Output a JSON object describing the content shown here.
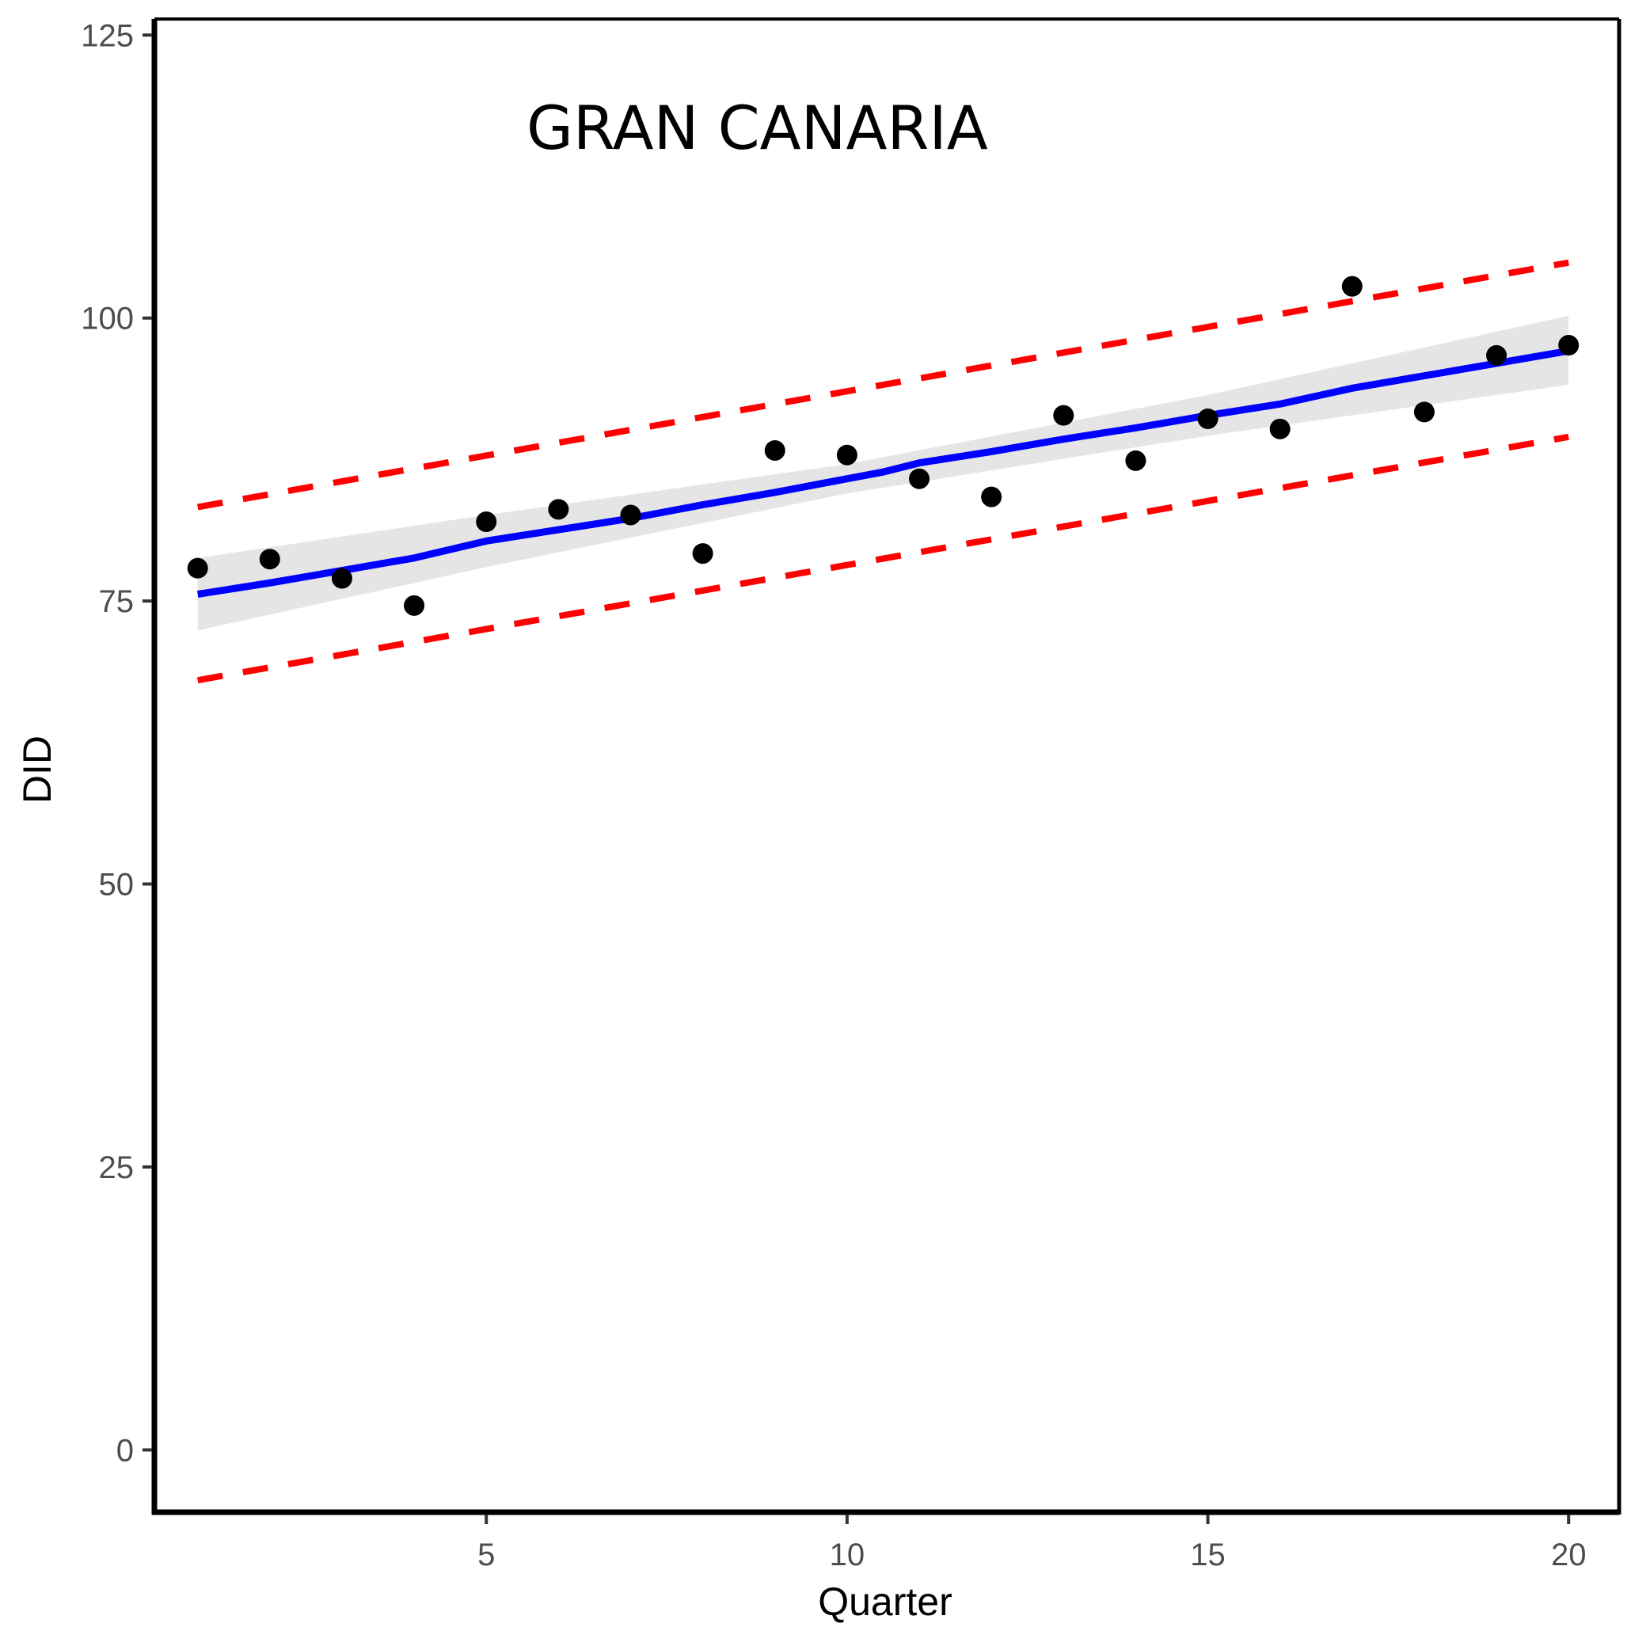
{
  "chart_data": {
    "type": "scatter",
    "title": "",
    "annotation": "GRAN CANARIA",
    "xlabel": "Quarter",
    "ylabel": "DID",
    "xlim": [
      0.4,
      20.7
    ],
    "ylim": [
      -5.5,
      126
    ],
    "x_ticks": [
      5,
      10,
      15,
      20
    ],
    "y_ticks": [
      0,
      25,
      50,
      75,
      100,
      125
    ],
    "grid": false,
    "points": {
      "x": [
        1,
        2,
        3,
        4,
        5,
        6,
        7,
        8,
        9,
        10,
        11,
        12,
        13,
        14,
        15,
        16,
        17,
        18,
        19,
        20
      ],
      "y": [
        77.9,
        78.7,
        77.0,
        74.6,
        82.0,
        83.1,
        82.6,
        79.2,
        88.3,
        87.9,
        85.8,
        84.2,
        91.4,
        87.4,
        91.1,
        90.2,
        102.8,
        91.7,
        96.7,
        97.6
      ]
    },
    "fit": {
      "name": "fit",
      "color": "#0000ff",
      "x": [
        1,
        2,
        3,
        4,
        5,
        6,
        7,
        8,
        9,
        10,
        10.5,
        11,
        12,
        13,
        14,
        15,
        16,
        17,
        18,
        19,
        20
      ],
      "y": [
        75.6,
        76.6,
        77.7,
        78.8,
        80.3,
        81.3,
        82.3,
        83.5,
        84.6,
        85.8,
        86.4,
        87.2,
        88.2,
        89.3,
        90.3,
        91.4,
        92.4,
        93.8,
        94.9,
        96.0,
        97.1
      ]
    },
    "confidence_band": {
      "color": "#e5e5e5",
      "x": [
        1,
        5,
        10,
        15,
        20
      ],
      "lower": [
        72.4,
        78.0,
        84.5,
        89.6,
        94.1
      ],
      "upper": [
        78.8,
        82.6,
        87.1,
        93.2,
        100.2
      ]
    },
    "upper_prediction": {
      "color": "#ff0000",
      "x": [
        1,
        20
      ],
      "y": [
        83.3,
        104.9
      ]
    },
    "lower_prediction": {
      "color": "#ff0000",
      "x": [
        1,
        20
      ],
      "y": [
        68.0,
        89.5
      ]
    }
  }
}
